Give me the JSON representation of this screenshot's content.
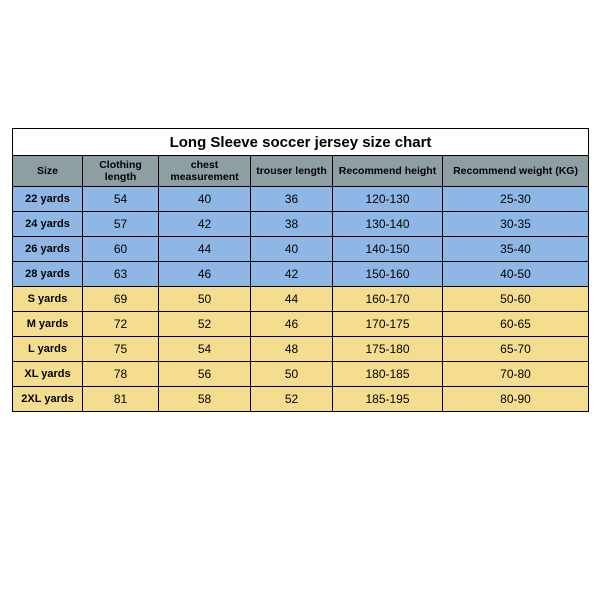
{
  "table": {
    "title": "Long Sleeve soccer jersey size chart",
    "columns": [
      "Size",
      "Clothing length",
      "chest measurement",
      "trouser length",
      "Recommend height",
      "Recommend weight (KG)"
    ],
    "colors": {
      "header_bg": "#8e9fa4",
      "row_kids_bg": "#8eb7e5",
      "row_adult_bg": "#f4dd8e",
      "border": "#000000",
      "page_bg": "#ffffff"
    },
    "font": {
      "title_size_pt": 15,
      "header_size_pt": 10.5,
      "body_size_pt": 12
    },
    "rows": [
      {
        "group": "kids",
        "size": "22 yards",
        "clothing_length": "54",
        "chest": "40",
        "trouser": "36",
        "height": "120-130",
        "weight": "25-30"
      },
      {
        "group": "kids",
        "size": "24 yards",
        "clothing_length": "57",
        "chest": "42",
        "trouser": "38",
        "height": "130-140",
        "weight": "30-35"
      },
      {
        "group": "kids",
        "size": "26 yards",
        "clothing_length": "60",
        "chest": "44",
        "trouser": "40",
        "height": "140-150",
        "weight": "35-40"
      },
      {
        "group": "kids",
        "size": "28 yards",
        "clothing_length": "63",
        "chest": "46",
        "trouser": "42",
        "height": "150-160",
        "weight": "40-50"
      },
      {
        "group": "adult",
        "size": "S yards",
        "clothing_length": "69",
        "chest": "50",
        "trouser": "44",
        "height": "160-170",
        "weight": "50-60"
      },
      {
        "group": "adult",
        "size": "M yards",
        "clothing_length": "72",
        "chest": "52",
        "trouser": "46",
        "height": "170-175",
        "weight": "60-65"
      },
      {
        "group": "adult",
        "size": "L yards",
        "clothing_length": "75",
        "chest": "54",
        "trouser": "48",
        "height": "175-180",
        "weight": "65-70"
      },
      {
        "group": "adult",
        "size": "XL yards",
        "clothing_length": "78",
        "chest": "56",
        "trouser": "50",
        "height": "180-185",
        "weight": "70-80"
      },
      {
        "group": "adult",
        "size": "2XL yards",
        "clothing_length": "81",
        "chest": "58",
        "trouser": "52",
        "height": "185-195",
        "weight": "80-90"
      }
    ]
  }
}
